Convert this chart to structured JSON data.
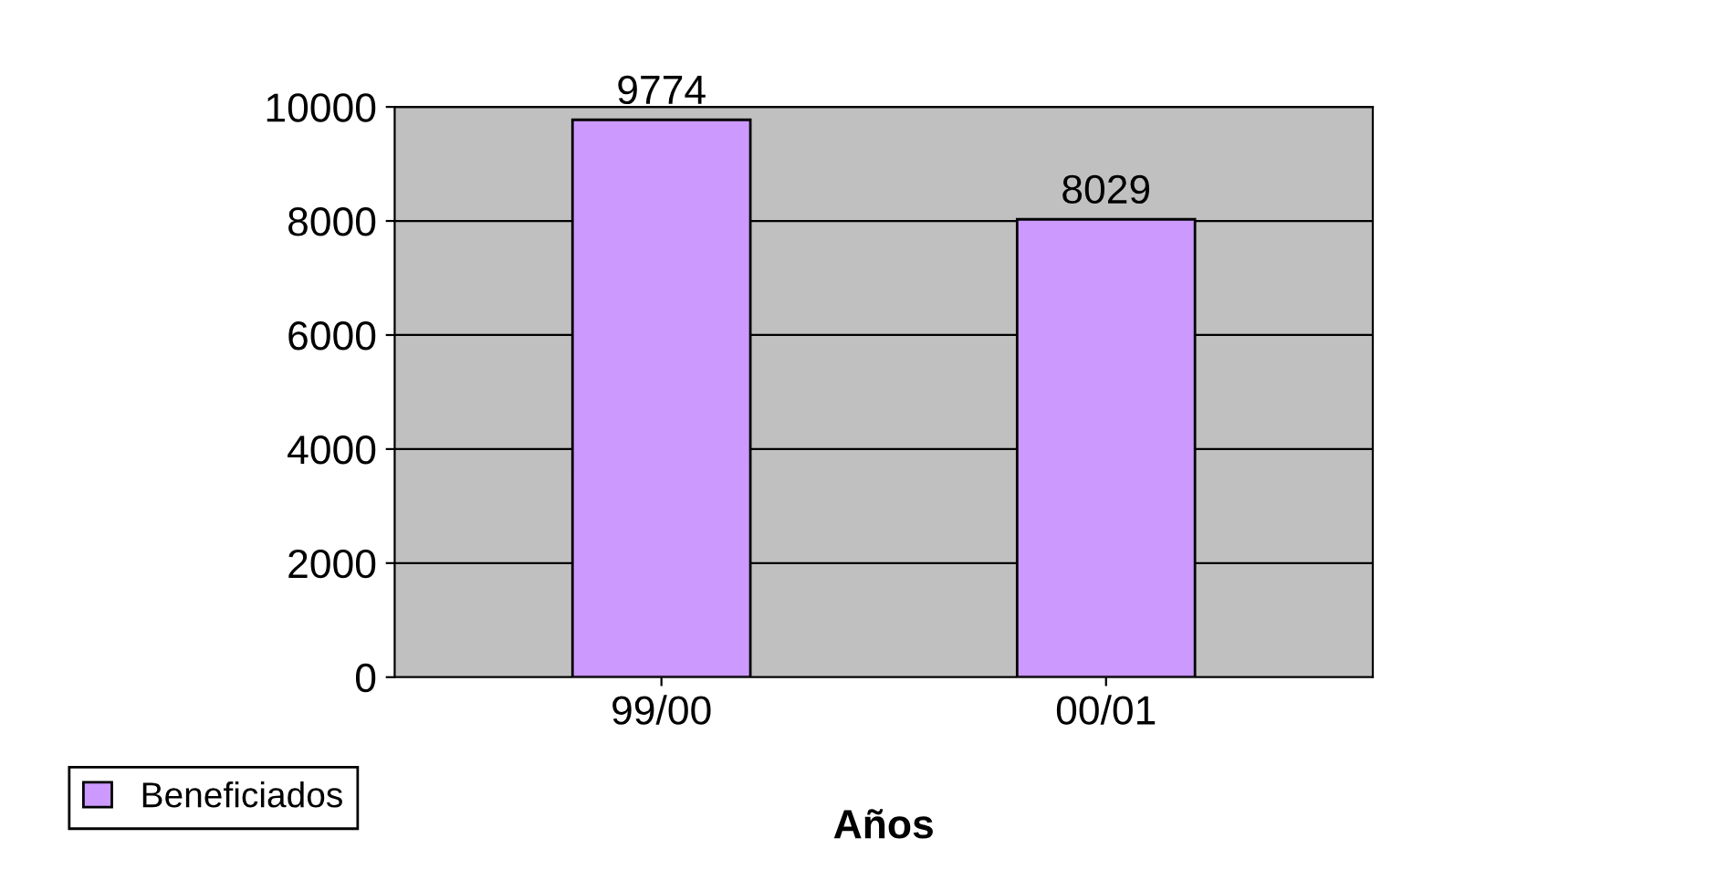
{
  "chart_data": {
    "type": "bar",
    "xlabel": "Años",
    "categories": [
      "99/00",
      "00/01"
    ],
    "series": [
      {
        "name": "Beneficiados",
        "color": "#cc99ff",
        "values": [
          9774,
          8029
        ]
      }
    ],
    "ylim": [
      0,
      10000
    ],
    "yticks": [
      0,
      2000,
      4000,
      6000,
      8000,
      10000
    ],
    "grid": "y",
    "data_labels": true,
    "legend": "bottom left"
  }
}
